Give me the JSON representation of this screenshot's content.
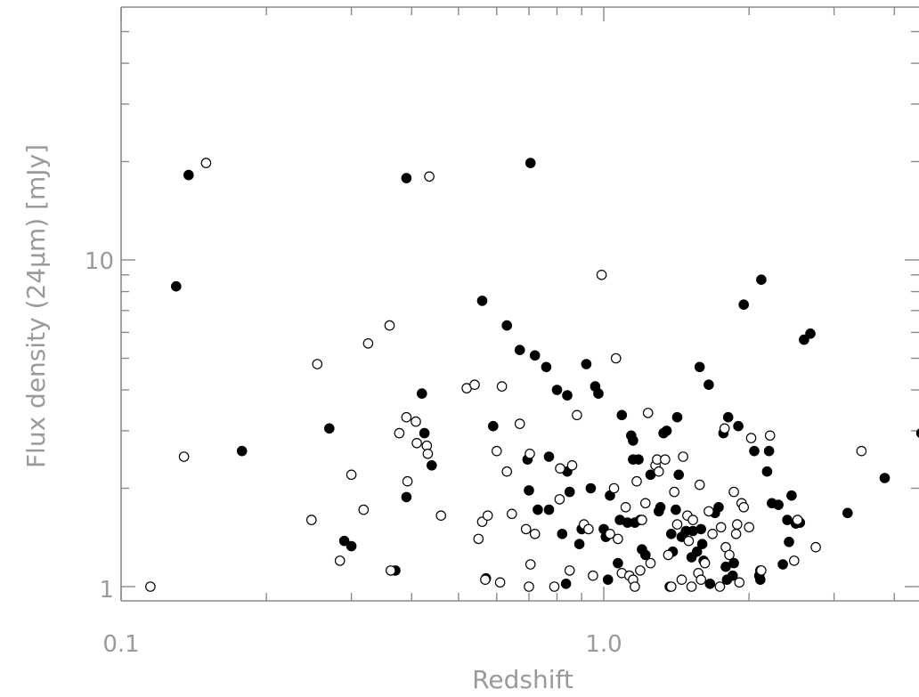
{
  "chart_data": {
    "type": "scatter",
    "xscale": "log",
    "yscale": "log",
    "xlim": [
      0.1,
      5.0
    ],
    "ylim": [
      0.85,
      60
    ],
    "xlabel": "Redshift",
    "ylabel": "Flux density (24μm) [mJy]",
    "xticklabels": [
      "0.1",
      "1.0"
    ],
    "yticklabels": [
      "1",
      "10"
    ],
    "series": [
      {
        "marker": "filled",
        "points": [
          [
            0.13,
            8.3
          ],
          [
            0.138,
            18.2
          ],
          [
            0.178,
            2.6
          ],
          [
            0.27,
            3.05
          ],
          [
            0.29,
            1.38
          ],
          [
            0.3,
            1.33
          ],
          [
            0.37,
            1.12
          ],
          [
            0.39,
            1.88
          ],
          [
            0.39,
            17.8
          ],
          [
            0.42,
            3.9
          ],
          [
            0.425,
            2.95
          ],
          [
            0.44,
            2.35
          ],
          [
            0.56,
            7.5
          ],
          [
            0.57,
            1.06
          ],
          [
            0.59,
            3.1
          ],
          [
            0.63,
            6.3
          ],
          [
            0.67,
            5.3
          ],
          [
            0.695,
            2.45
          ],
          [
            0.7,
            1.97
          ],
          [
            0.705,
            19.8
          ],
          [
            0.72,
            5.1
          ],
          [
            0.73,
            1.72
          ],
          [
            0.76,
            4.7
          ],
          [
            0.77,
            2.5
          ],
          [
            0.77,
            1.72
          ],
          [
            0.8,
            4.0
          ],
          [
            0.82,
            1.45
          ],
          [
            0.84,
            3.85
          ],
          [
            0.835,
            1.02
          ],
          [
            0.84,
            2.25
          ],
          [
            0.85,
            1.95
          ],
          [
            0.89,
            1.35
          ],
          [
            0.9,
            1.5
          ],
          [
            0.92,
            4.8
          ],
          [
            0.94,
            2.0
          ],
          [
            0.96,
            4.1
          ],
          [
            0.975,
            3.9
          ],
          [
            1.0,
            1.5
          ],
          [
            1.01,
            1.42
          ],
          [
            1.02,
            1.05
          ],
          [
            1.03,
            1.9
          ],
          [
            1.07,
            1.18
          ],
          [
            1.08,
            1.6
          ],
          [
            1.09,
            3.35
          ],
          [
            1.12,
            1.57
          ],
          [
            1.14,
            2.9
          ],
          [
            1.15,
            2.8
          ],
          [
            1.15,
            2.45
          ],
          [
            1.16,
            1.57
          ],
          [
            1.18,
            2.45
          ],
          [
            1.19,
            1.6
          ],
          [
            1.2,
            1.3
          ],
          [
            1.22,
            1.25
          ],
          [
            1.25,
            2.2
          ],
          [
            1.3,
            1.7
          ],
          [
            1.31,
            1.75
          ],
          [
            1.33,
            2.95
          ],
          [
            1.35,
            3.0
          ],
          [
            1.37,
            1.0
          ],
          [
            1.38,
            1.45
          ],
          [
            1.39,
            1.28
          ],
          [
            1.41,
            1.72
          ],
          [
            1.42,
            3.3
          ],
          [
            1.43,
            2.2
          ],
          [
            1.45,
            1.42
          ],
          [
            1.48,
            1.48
          ],
          [
            1.52,
            1.23
          ],
          [
            1.53,
            1.48
          ],
          [
            1.56,
            1.28
          ],
          [
            1.58,
            4.7
          ],
          [
            1.59,
            1.5
          ],
          [
            1.6,
            1.35
          ],
          [
            1.61,
            1.2
          ],
          [
            1.65,
            4.15
          ],
          [
            1.66,
            1.02
          ],
          [
            1.7,
            1.68
          ],
          [
            1.73,
            1.75
          ],
          [
            1.77,
            2.95
          ],
          [
            1.79,
            1.15
          ],
          [
            1.8,
            1.05
          ],
          [
            1.81,
            3.3
          ],
          [
            1.85,
            1.08
          ],
          [
            1.86,
            1.18
          ],
          [
            1.9,
            3.1
          ],
          [
            1.95,
            7.3
          ],
          [
            2.05,
            2.6
          ],
          [
            2.1,
            1.08
          ],
          [
            2.11,
            1.05
          ],
          [
            2.12,
            8.7
          ],
          [
            2.18,
            2.25
          ],
          [
            2.2,
            2.6
          ],
          [
            2.23,
            1.8
          ],
          [
            2.3,
            1.78
          ],
          [
            2.35,
            1.17
          ],
          [
            2.4,
            1.6
          ],
          [
            2.42,
            1.37
          ],
          [
            2.45,
            1.9
          ],
          [
            2.5,
            1.56
          ],
          [
            2.55,
            1.57
          ],
          [
            2.6,
            5.7
          ],
          [
            2.68,
            5.95
          ],
          [
            3.2,
            1.68
          ],
          [
            3.82,
            2.15
          ],
          [
            4.55,
            2.95
          ],
          [
            4.62,
            2.05
          ]
        ]
      },
      {
        "marker": "open",
        "points": [
          [
            0.115,
            1.0
          ],
          [
            0.135,
            2.5
          ],
          [
            0.15,
            19.8
          ],
          [
            0.248,
            1.6
          ],
          [
            0.255,
            4.8
          ],
          [
            0.284,
            1.2
          ],
          [
            0.3,
            2.2
          ],
          [
            0.318,
            1.72
          ],
          [
            0.325,
            5.55
          ],
          [
            0.36,
            6.3
          ],
          [
            0.362,
            1.12
          ],
          [
            0.377,
            2.95
          ],
          [
            0.39,
            3.3
          ],
          [
            0.392,
            2.1
          ],
          [
            0.408,
            3.2
          ],
          [
            0.41,
            2.75
          ],
          [
            0.43,
            2.7
          ],
          [
            0.432,
            2.55
          ],
          [
            0.435,
            18.0
          ],
          [
            0.46,
            1.65
          ],
          [
            0.52,
            4.05
          ],
          [
            0.54,
            4.15
          ],
          [
            0.55,
            1.4
          ],
          [
            0.56,
            1.58
          ],
          [
            0.568,
            1.05
          ],
          [
            0.575,
            1.65
          ],
          [
            0.6,
            2.6
          ],
          [
            0.61,
            1.03
          ],
          [
            0.615,
            4.1
          ],
          [
            0.63,
            2.25
          ],
          [
            0.645,
            1.67
          ],
          [
            0.67,
            3.15
          ],
          [
            0.69,
            1.5
          ],
          [
            0.7,
            1.0
          ],
          [
            0.703,
            2.55
          ],
          [
            0.705,
            1.17
          ],
          [
            0.72,
            1.45
          ],
          [
            0.79,
            1.0
          ],
          [
            0.81,
            1.85
          ],
          [
            0.812,
            2.3
          ],
          [
            0.85,
            1.12
          ],
          [
            0.86,
            2.35
          ],
          [
            0.88,
            3.35
          ],
          [
            0.91,
            1.55
          ],
          [
            0.93,
            1.5
          ],
          [
            0.95,
            1.08
          ],
          [
            0.99,
            9.0
          ],
          [
            1.03,
            1.45
          ],
          [
            1.05,
            2.0
          ],
          [
            1.06,
            5.0
          ],
          [
            1.07,
            1.4
          ],
          [
            1.09,
            1.1
          ],
          [
            1.11,
            1.75
          ],
          [
            1.13,
            1.08
          ],
          [
            1.15,
            1.05
          ],
          [
            1.16,
            1.0
          ],
          [
            1.17,
            2.1
          ],
          [
            1.19,
            1.12
          ],
          [
            1.2,
            1.6
          ],
          [
            1.22,
            1.8
          ],
          [
            1.235,
            3.4
          ],
          [
            1.25,
            1.18
          ],
          [
            1.28,
            2.35
          ],
          [
            1.29,
            2.45
          ],
          [
            1.3,
            2.25
          ],
          [
            1.34,
            2.45
          ],
          [
            1.36,
            1.25
          ],
          [
            1.38,
            1.0
          ],
          [
            1.4,
            1.95
          ],
          [
            1.42,
            1.55
          ],
          [
            1.45,
            1.05
          ],
          [
            1.46,
            2.5
          ],
          [
            1.49,
            1.65
          ],
          [
            1.5,
            1.38
          ],
          [
            1.52,
            1.0
          ],
          [
            1.53,
            1.6
          ],
          [
            1.57,
            1.1
          ],
          [
            1.58,
            2.05
          ],
          [
            1.59,
            1.05
          ],
          [
            1.62,
            1.18
          ],
          [
            1.65,
            1.7
          ],
          [
            1.68,
            1.45
          ],
          [
            1.74,
            1.0
          ],
          [
            1.75,
            1.52
          ],
          [
            1.78,
            3.05
          ],
          [
            1.79,
            1.32
          ],
          [
            1.82,
            1.25
          ],
          [
            1.86,
            1.95
          ],
          [
            1.88,
            1.45
          ],
          [
            1.89,
            1.55
          ],
          [
            1.91,
            1.03
          ],
          [
            1.93,
            1.8
          ],
          [
            1.95,
            1.75
          ],
          [
            2.0,
            1.52
          ],
          [
            2.02,
            2.85
          ],
          [
            2.11,
            1.12
          ],
          [
            2.12,
            1.12
          ],
          [
            2.21,
            2.9
          ],
          [
            2.48,
            1.2
          ],
          [
            2.52,
            1.6
          ],
          [
            2.75,
            1.32
          ],
          [
            3.42,
            2.6
          ]
        ]
      }
    ]
  }
}
